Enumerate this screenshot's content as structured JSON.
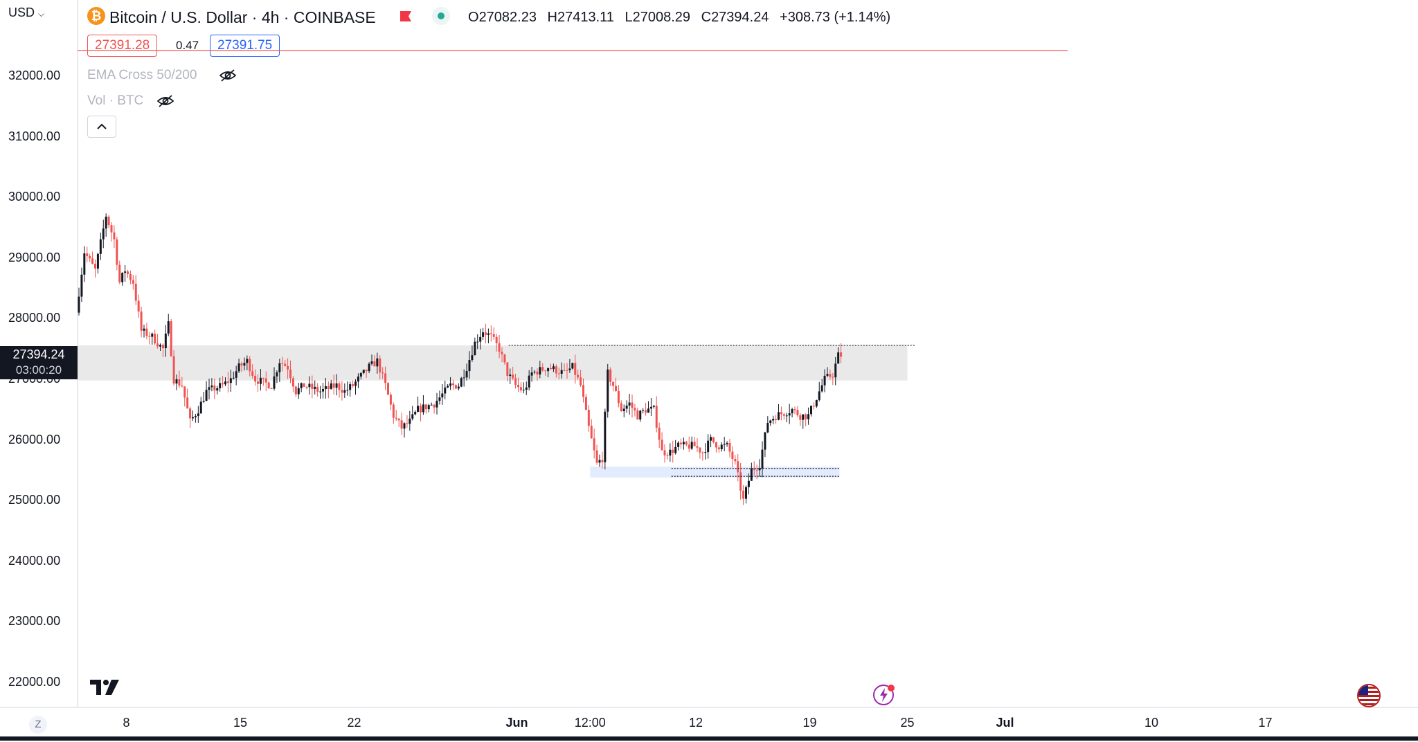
{
  "header": {
    "currency": "USD",
    "symbol_title": "Bitcoin / U.S. Dollar · 4h · COINBASE",
    "ohlc": {
      "o_label": "O",
      "o": "27082.23",
      "h_label": "H",
      "h": "27413.11",
      "l_label": "L",
      "l": "27008.29",
      "c_label": "C",
      "c": "27394.24",
      "change": "+308.73 (+1.14%)"
    },
    "sell_price": "27391.28",
    "spread": "0.47",
    "buy_price": "27391.75"
  },
  "indicators": [
    {
      "label": "EMA Cross 50/200"
    },
    {
      "label": "Vol · BTC"
    }
  ],
  "price_tag": {
    "price": "27394.24",
    "countdown": "03:00:20"
  },
  "footer": {
    "timezone_badge": "Z"
  },
  "colors": {
    "up": "#131722",
    "down": "#ef5350",
    "zone_gray": "#e9e9ea",
    "zone_blue": "#e3ecff",
    "sell": "#ef5350",
    "buy": "#2962ff"
  },
  "chart_data": {
    "type": "candlestick",
    "timeframe": "4h",
    "y_ticks": [
      "32000.00",
      "31000.00",
      "30000.00",
      "29000.00",
      "28000.00",
      "27000.00",
      "26000.00",
      "25000.00",
      "24000.00",
      "23000.00",
      "22000.00"
    ],
    "ylim": [
      21700,
      32650
    ],
    "x_ticks": [
      {
        "label": "8",
        "date": "2023-05-08"
      },
      {
        "label": "15",
        "date": "2023-05-15"
      },
      {
        "label": "22",
        "date": "2023-05-22"
      },
      {
        "label": "Jun",
        "date": "2023-06-01"
      },
      {
        "label": "12:00",
        "date": "2023-06-05 12:00"
      },
      {
        "label": "12",
        "date": "2023-06-12"
      },
      {
        "label": "19",
        "date": "2023-06-19"
      },
      {
        "label": "25",
        "date": "2023-06-25"
      },
      {
        "label": "Jul",
        "date": "2023-07-01"
      },
      {
        "label": "10",
        "date": "2023-07-10"
      },
      {
        "label": "17",
        "date": "2023-07-17"
      }
    ],
    "xlim": [
      "2023-05-05 00:00",
      "2023-07-20 00:00"
    ],
    "price_path": [
      [
        "2023-05-05 00:00",
        28100
      ],
      [
        "2023-05-05 12:00",
        29100
      ],
      [
        "2023-05-06 04:00",
        28800
      ],
      [
        "2023-05-06 20:00",
        29700
      ],
      [
        "2023-05-07 08:00",
        29300
      ],
      [
        "2023-05-07 16:00",
        28600
      ],
      [
        "2023-05-08 00:00",
        28800
      ],
      [
        "2023-05-08 12:00",
        28600
      ],
      [
        "2023-05-09 00:00",
        27800
      ],
      [
        "2023-05-09 16:00",
        27700
      ],
      [
        "2023-05-10 08:00",
        27500
      ],
      [
        "2023-05-10 16:00",
        27900
      ],
      [
        "2023-05-11 00:00",
        27000
      ],
      [
        "2023-05-11 12:00",
        26900
      ],
      [
        "2023-05-12 00:00",
        26300
      ],
      [
        "2023-05-12 12:00",
        26500
      ],
      [
        "2023-05-13 00:00",
        26800
      ],
      [
        "2023-05-14 00:00",
        26900
      ],
      [
        "2023-05-14 12:00",
        27000
      ],
      [
        "2023-05-15 00:00",
        27200
      ],
      [
        "2023-05-15 12:00",
        27300
      ],
      [
        "2023-05-16 00:00",
        27000
      ],
      [
        "2023-05-17 00:00",
        26900
      ],
      [
        "2023-05-17 12:00",
        27300
      ],
      [
        "2023-05-18 00:00",
        27200
      ],
      [
        "2023-05-18 12:00",
        26800
      ],
      [
        "2023-05-19 00:00",
        26900
      ],
      [
        "2023-05-20 00:00",
        26800
      ],
      [
        "2023-05-21 00:00",
        26900
      ],
      [
        "2023-05-21 12:00",
        26800
      ],
      [
        "2023-05-22 00:00",
        26900
      ],
      [
        "2023-05-23 00:00",
        27200
      ],
      [
        "2023-05-23 12:00",
        27300
      ],
      [
        "2023-05-24 00:00",
        26900
      ],
      [
        "2023-05-24 12:00",
        26400
      ],
      [
        "2023-05-25 00:00",
        26200
      ],
      [
        "2023-05-25 12:00",
        26300
      ],
      [
        "2023-05-26 00:00",
        26500
      ],
      [
        "2023-05-27 00:00",
        26600
      ],
      [
        "2023-05-28 00:00",
        26900
      ],
      [
        "2023-05-28 12:00",
        26900
      ],
      [
        "2023-05-29 00:00",
        27200
      ],
      [
        "2023-05-29 12:00",
        27600
      ],
      [
        "2023-05-30 00:00",
        27800
      ],
      [
        "2023-05-30 12:00",
        27700
      ],
      [
        "2023-05-31 00:00",
        27500
      ],
      [
        "2023-05-31 12:00",
        27100
      ],
      [
        "2023-06-01 00:00",
        26900
      ],
      [
        "2023-06-01 12:00",
        26800
      ],
      [
        "2023-06-02 00:00",
        27100
      ],
      [
        "2023-06-03 00:00",
        27200
      ],
      [
        "2023-06-04 00:00",
        27100
      ],
      [
        "2023-06-04 12:00",
        27200
      ],
      [
        "2023-06-05 00:00",
        26900
      ],
      [
        "2023-06-05 12:00",
        26200
      ],
      [
        "2023-06-06 00:00",
        25600
      ],
      [
        "2023-06-06 08:00",
        25700
      ],
      [
        "2023-06-06 16:00",
        27100
      ],
      [
        "2023-06-07 00:00",
        26900
      ],
      [
        "2023-06-07 12:00",
        26500
      ],
      [
        "2023-06-08 00:00",
        26600
      ],
      [
        "2023-06-08 12:00",
        26400
      ],
      [
        "2023-06-09 00:00",
        26500
      ],
      [
        "2023-06-09 12:00",
        26500
      ],
      [
        "2023-06-10 00:00",
        25800
      ],
      [
        "2023-06-10 12:00",
        25800
      ],
      [
        "2023-06-11 00:00",
        25900
      ],
      [
        "2023-06-12 00:00",
        25900
      ],
      [
        "2023-06-12 12:00",
        25800
      ],
      [
        "2023-06-13 00:00",
        26000
      ],
      [
        "2023-06-13 12:00",
        25900
      ],
      [
        "2023-06-14 00:00",
        25900
      ],
      [
        "2023-06-14 12:00",
        25600
      ],
      [
        "2023-06-15 00:00",
        25000
      ],
      [
        "2023-06-15 12:00",
        25500
      ],
      [
        "2023-06-16 00:00",
        25600
      ],
      [
        "2023-06-16 12:00",
        26300
      ],
      [
        "2023-06-17 00:00",
        26400
      ],
      [
        "2023-06-18 00:00",
        26500
      ],
      [
        "2023-06-18 12:00",
        26400
      ],
      [
        "2023-06-19 00:00",
        26400
      ],
      [
        "2023-06-19 12:00",
        26700
      ],
      [
        "2023-06-20 00:00",
        27000
      ],
      [
        "2023-06-20 12:00",
        27082
      ],
      [
        "2023-06-20 20:00",
        27394
      ]
    ],
    "zones": [
      {
        "kind": "resistance",
        "from": "2023-05-05 00:00",
        "to": "2023-06-25 00:00",
        "y_low": 26980,
        "y_high": 27560
      },
      {
        "kind": "support",
        "from": "2023-06-05 12:00",
        "to": "2023-06-20 20:00",
        "y_low": 25380,
        "y_high": 25560
      }
    ],
    "dotted_lines": [
      {
        "from": "2023-05-31 12:00",
        "to": "2023-06-25 12:00",
        "y": 27560
      },
      {
        "from": "2023-06-10 12:00",
        "to": "2023-06-20 20:00",
        "y": 25530
      },
      {
        "from": "2023-06-10 12:00",
        "to": "2023-06-20 20:00",
        "y": 25400
      }
    ],
    "current_price": 27394.24
  }
}
